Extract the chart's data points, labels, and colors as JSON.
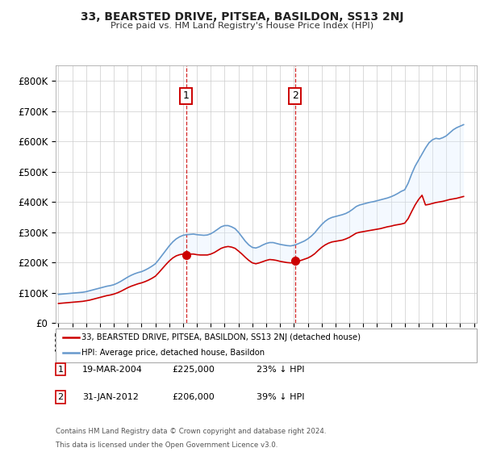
{
  "title": "33, BEARSTED DRIVE, PITSEA, BASILDON, SS13 2NJ",
  "subtitle": "Price paid vs. HM Land Registry's House Price Index (HPI)",
  "legend_line1": "33, BEARSTED DRIVE, PITSEA, BASILDON, SS13 2NJ (detached house)",
  "legend_line2": "HPI: Average price, detached house, Basildon",
  "footer1": "Contains HM Land Registry data © Crown copyright and database right 2024.",
  "footer2": "This data is licensed under the Open Government Licence v3.0.",
  "marker1_label": "1",
  "marker1_date": "19-MAR-2004",
  "marker1_price": "£225,000",
  "marker1_hpi": "23% ↓ HPI",
  "marker2_label": "2",
  "marker2_date": "31-JAN-2012",
  "marker2_price": "£206,000",
  "marker2_hpi": "39% ↓ HPI",
  "red_color": "#cc0000",
  "blue_color": "#6699cc",
  "shade_color": "#ddeeff",
  "marker_box_color": "#cc0000",
  "ylim": [
    0,
    850000
  ],
  "yticks": [
    0,
    100000,
    200000,
    300000,
    400000,
    500000,
    600000,
    700000,
    800000
  ],
  "ytick_labels": [
    "£0",
    "£100K",
    "£200K",
    "£300K",
    "£400K",
    "£500K",
    "£600K",
    "£700K",
    "£800K"
  ],
  "hpi_years": [
    1995,
    1995.25,
    1995.5,
    1995.75,
    1996,
    1996.25,
    1996.5,
    1996.75,
    1997,
    1997.25,
    1997.5,
    1997.75,
    1998,
    1998.25,
    1998.5,
    1998.75,
    1999,
    1999.25,
    1999.5,
    1999.75,
    2000,
    2000.25,
    2000.5,
    2000.75,
    2001,
    2001.25,
    2001.5,
    2001.75,
    2002,
    2002.25,
    2002.5,
    2002.75,
    2003,
    2003.25,
    2003.5,
    2003.75,
    2004,
    2004.25,
    2004.5,
    2004.75,
    2005,
    2005.25,
    2005.5,
    2005.75,
    2006,
    2006.25,
    2006.5,
    2006.75,
    2007,
    2007.25,
    2007.5,
    2007.75,
    2008,
    2008.25,
    2008.5,
    2008.75,
    2009,
    2009.25,
    2009.5,
    2009.75,
    2010,
    2010.25,
    2010.5,
    2010.75,
    2011,
    2011.25,
    2011.5,
    2011.75,
    2012,
    2012.25,
    2012.5,
    2012.75,
    2013,
    2013.25,
    2013.5,
    2013.75,
    2014,
    2014.25,
    2014.5,
    2014.75,
    2015,
    2015.25,
    2015.5,
    2015.75,
    2016,
    2016.25,
    2016.5,
    2016.75,
    2017,
    2017.25,
    2017.5,
    2017.75,
    2018,
    2018.25,
    2018.5,
    2018.75,
    2019,
    2019.25,
    2019.5,
    2019.75,
    2020,
    2020.25,
    2020.5,
    2020.75,
    2021,
    2021.25,
    2021.5,
    2021.75,
    2022,
    2022.25,
    2022.5,
    2022.75,
    2023,
    2023.25,
    2023.5,
    2023.75,
    2024,
    2024.25
  ],
  "hpi_values": [
    95000,
    96000,
    97000,
    98000,
    99000,
    100000,
    101000,
    102000,
    104000,
    107000,
    110000,
    113000,
    116000,
    119000,
    122000,
    124000,
    127000,
    132000,
    138000,
    145000,
    152000,
    158000,
    163000,
    167000,
    170000,
    175000,
    181000,
    188000,
    196000,
    210000,
    225000,
    240000,
    255000,
    268000,
    278000,
    285000,
    290000,
    292000,
    293000,
    294000,
    292000,
    291000,
    290000,
    291000,
    295000,
    302000,
    310000,
    318000,
    322000,
    322000,
    318000,
    312000,
    300000,
    285000,
    270000,
    258000,
    250000,
    248000,
    252000,
    258000,
    263000,
    266000,
    266000,
    263000,
    260000,
    258000,
    256000,
    255000,
    257000,
    261000,
    266000,
    271000,
    278000,
    287000,
    298000,
    312000,
    325000,
    336000,
    344000,
    349000,
    352000,
    355000,
    358000,
    362000,
    368000,
    376000,
    385000,
    390000,
    393000,
    396000,
    399000,
    401000,
    404000,
    407000,
    410000,
    413000,
    417000,
    422000,
    428000,
    435000,
    440000,
    462000,
    492000,
    518000,
    538000,
    558000,
    578000,
    595000,
    605000,
    610000,
    608000,
    612000,
    618000,
    628000,
    638000,
    645000,
    650000,
    655000
  ],
  "red_years": [
    1995,
    1995.25,
    1995.5,
    1995.75,
    1996,
    1996.25,
    1996.5,
    1996.75,
    1997,
    1997.25,
    1997.5,
    1997.75,
    1998,
    1998.25,
    1998.5,
    1998.75,
    1999,
    1999.25,
    1999.5,
    1999.75,
    2000,
    2000.25,
    2000.5,
    2000.75,
    2001,
    2001.25,
    2001.5,
    2001.75,
    2002,
    2002.25,
    2002.5,
    2002.75,
    2003,
    2003.25,
    2003.5,
    2003.75,
    2004,
    2004.25,
    2004.5,
    2004.75,
    2005,
    2005.25,
    2005.5,
    2005.75,
    2006,
    2006.25,
    2006.5,
    2006.75,
    2007,
    2007.25,
    2007.5,
    2007.75,
    2008,
    2008.25,
    2008.5,
    2008.75,
    2009,
    2009.25,
    2009.5,
    2009.75,
    2010,
    2010.25,
    2010.5,
    2010.75,
    2011,
    2011.25,
    2011.5,
    2011.75,
    2012,
    2012.25,
    2012.5,
    2012.75,
    2013,
    2013.25,
    2013.5,
    2013.75,
    2014,
    2014.25,
    2014.5,
    2014.75,
    2015,
    2015.25,
    2015.5,
    2015.75,
    2016,
    2016.25,
    2016.5,
    2016.75,
    2017,
    2017.25,
    2017.5,
    2017.75,
    2018,
    2018.25,
    2018.5,
    2018.75,
    2019,
    2019.25,
    2019.5,
    2019.75,
    2020,
    2020.25,
    2020.5,
    2020.75,
    2021,
    2021.25,
    2021.5,
    2021.75,
    2022,
    2022.25,
    2022.5,
    2022.75,
    2023,
    2023.25,
    2023.5,
    2023.75,
    2024,
    2024.25
  ],
  "red_values": [
    65000,
    66000,
    67000,
    68000,
    69000,
    70000,
    71000,
    72000,
    74000,
    76000,
    79000,
    82000,
    85000,
    88000,
    91000,
    93000,
    96000,
    100000,
    105000,
    111000,
    117000,
    122000,
    126000,
    130000,
    133000,
    137000,
    142000,
    148000,
    155000,
    167000,
    180000,
    193000,
    205000,
    215000,
    222000,
    226000,
    228000,
    228000,
    228000,
    228000,
    226000,
    225000,
    225000,
    225000,
    228000,
    233000,
    240000,
    247000,
    251000,
    253000,
    251000,
    247000,
    238000,
    228000,
    217000,
    207000,
    199000,
    196000,
    199000,
    203000,
    207000,
    210000,
    209000,
    207000,
    204000,
    202000,
    200000,
    199000,
    200000,
    203000,
    207000,
    211000,
    215000,
    221000,
    229000,
    240000,
    250000,
    258000,
    264000,
    268000,
    270000,
    272000,
    274000,
    278000,
    283000,
    290000,
    297000,
    300000,
    302000,
    304000,
    306000,
    308000,
    310000,
    312000,
    315000,
    318000,
    320000,
    323000,
    325000,
    327000,
    330000,
    345000,
    368000,
    390000,
    408000,
    422000,
    390000,
    392000,
    395000,
    398000,
    400000,
    402000,
    405000,
    408000,
    410000,
    412000,
    415000,
    418000
  ],
  "marker1_year": 2004.21,
  "marker1_value": 225000,
  "marker2_year": 2012.08,
  "marker2_value": 206000,
  "xlim": [
    1994.8,
    2025.2
  ],
  "xticks": [
    1995,
    1996,
    1997,
    1998,
    1999,
    2000,
    2001,
    2002,
    2003,
    2004,
    2005,
    2006,
    2007,
    2008,
    2009,
    2010,
    2011,
    2012,
    2013,
    2014,
    2015,
    2016,
    2017,
    2018,
    2019,
    2020,
    2021,
    2022,
    2023,
    2024,
    2025
  ]
}
